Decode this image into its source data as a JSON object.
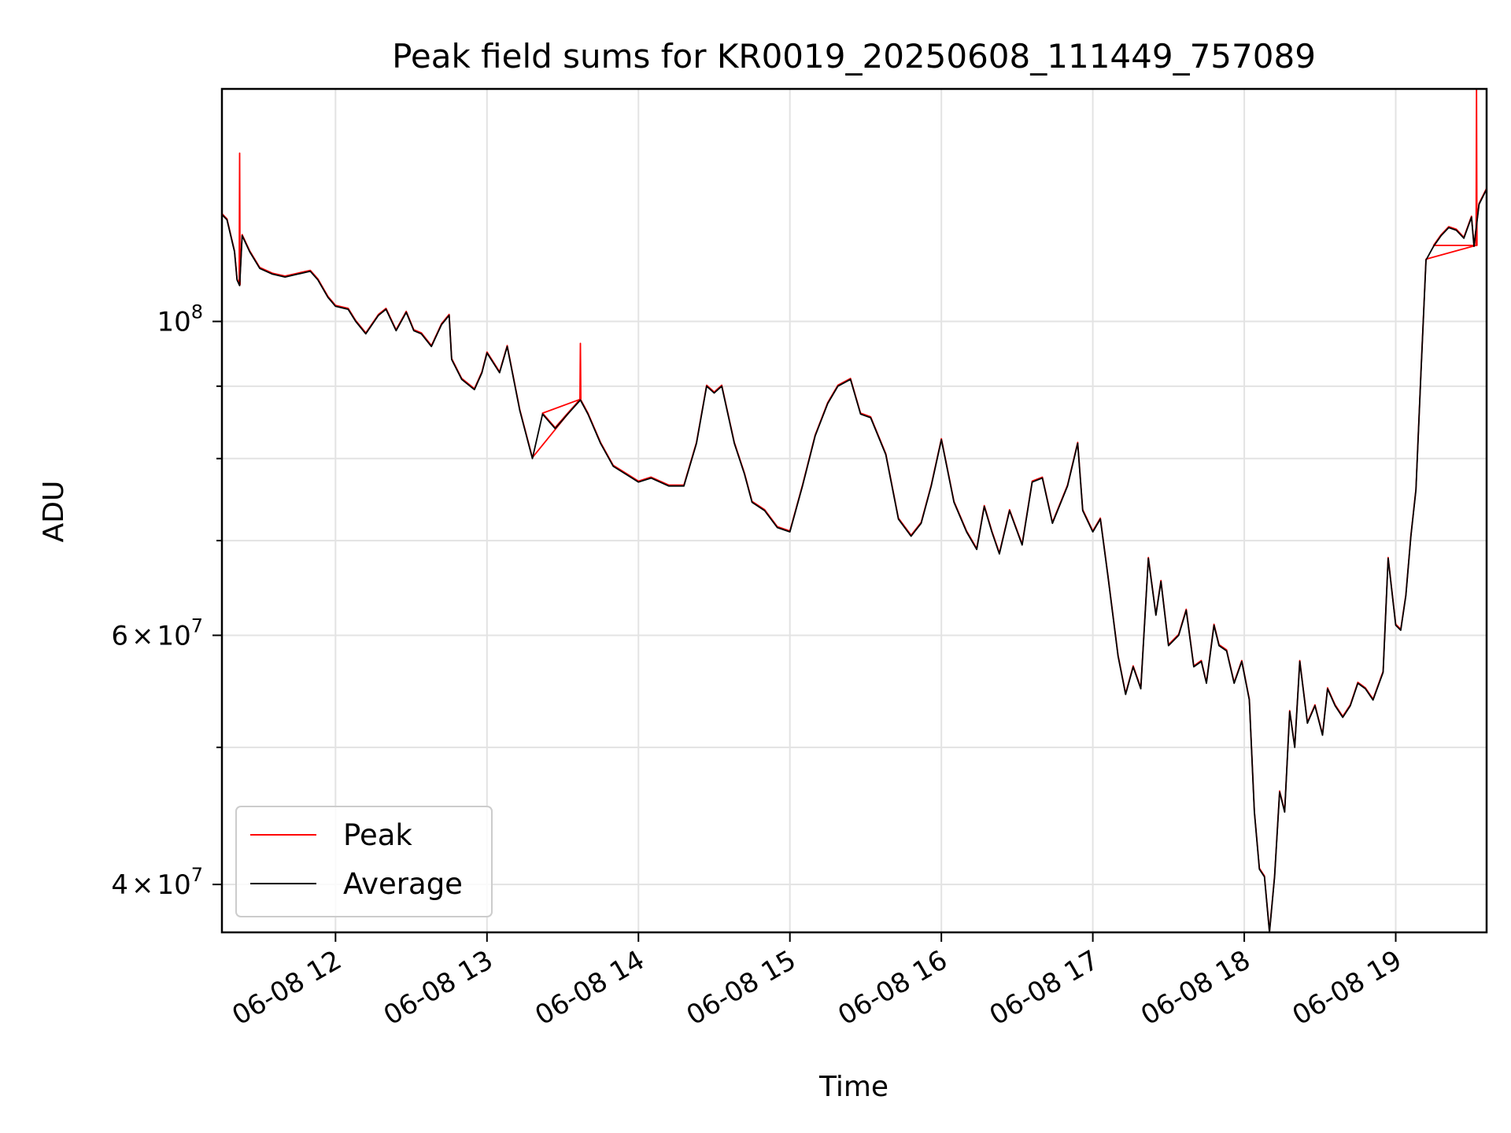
{
  "chart_data": {
    "type": "line",
    "title": "Peak field sums for KR0019_20250608_111449_757089",
    "xlabel": "Time",
    "ylabel": "ADU",
    "y_scale": "log",
    "ylim": [
      37000000,
      146000000
    ],
    "xlim": [
      "2025-06-08 11:15",
      "2025-06-08 19:36"
    ],
    "grid": true,
    "legend_position": "lower-left",
    "x_ticks": [
      {
        "value": "2025-06-08 12:00",
        "label": "06-08 12"
      },
      {
        "value": "2025-06-08 13:00",
        "label": "06-08 13"
      },
      {
        "value": "2025-06-08 14:00",
        "label": "06-08 14"
      },
      {
        "value": "2025-06-08 15:00",
        "label": "06-08 15"
      },
      {
        "value": "2025-06-08 16:00",
        "label": "06-08 16"
      },
      {
        "value": "2025-06-08 17:00",
        "label": "06-08 17"
      },
      {
        "value": "2025-06-08 18:00",
        "label": "06-08 18"
      },
      {
        "value": "2025-06-08 19:00",
        "label": "06-08 19"
      }
    ],
    "y_major_ticks": [
      {
        "value": 40000000,
        "mant": "4",
        "exp": "7"
      },
      {
        "value": 60000000,
        "mant": "6",
        "exp": "7"
      },
      {
        "value": 100000000,
        "mant": "",
        "exp": "8"
      }
    ],
    "y_minor_gridlines": [
      50000000,
      70000000,
      80000000,
      90000000
    ],
    "series": [
      {
        "name": "Peak",
        "color": "#ff0000",
        "spikes": [
          {
            "x": "2025-06-08 11:22",
            "y": 131500000
          },
          {
            "x": "2025-06-08 13:37",
            "y": 96500000
          },
          {
            "x": "2025-06-08 19:32",
            "y": 146000000
          }
        ]
      },
      {
        "name": "Average",
        "color": "#000000",
        "x": [
          "2025-06-08 11:15",
          "2025-06-08 11:17",
          "2025-06-08 11:20",
          "2025-06-08 11:21",
          "2025-06-08 11:22",
          "2025-06-08 11:23",
          "2025-06-08 11:26",
          "2025-06-08 11:30",
          "2025-06-08 11:35",
          "2025-06-08 11:40",
          "2025-06-08 11:45",
          "2025-06-08 11:50",
          "2025-06-08 11:53",
          "2025-06-08 11:57",
          "2025-06-08 12:00",
          "2025-06-08 12:05",
          "2025-06-08 12:08",
          "2025-06-08 12:12",
          "2025-06-08 12:17",
          "2025-06-08 12:20",
          "2025-06-08 12:24",
          "2025-06-08 12:28",
          "2025-06-08 12:31",
          "2025-06-08 12:34",
          "2025-06-08 12:38",
          "2025-06-08 12:42",
          "2025-06-08 12:45",
          "2025-06-08 12:46",
          "2025-06-08 12:50",
          "2025-06-08 12:55",
          "2025-06-08 12:58",
          "2025-06-08 13:00",
          "2025-06-08 13:05",
          "2025-06-08 13:08",
          "2025-06-08 13:13",
          "2025-06-08 13:18",
          "2025-06-08 13:22",
          "2025-06-08 13:27",
          "2025-06-08 13:32",
          "2025-06-08 13:37",
          "2025-06-08 13:40",
          "2025-06-08 13:45",
          "2025-06-08 13:50",
          "2025-06-08 13:55",
          "2025-06-08 14:00",
          "2025-06-08 14:05",
          "2025-06-08 14:12",
          "2025-06-08 14:18",
          "2025-06-08 14:23",
          "2025-06-08 14:27",
          "2025-06-08 14:30",
          "2025-06-08 14:33",
          "2025-06-08 14:38",
          "2025-06-08 14:42",
          "2025-06-08 14:45",
          "2025-06-08 14:50",
          "2025-06-08 14:55",
          "2025-06-08 15:00",
          "2025-06-08 15:05",
          "2025-06-08 15:10",
          "2025-06-08 15:15",
          "2025-06-08 15:19",
          "2025-06-08 15:24",
          "2025-06-08 15:28",
          "2025-06-08 15:32",
          "2025-06-08 15:38",
          "2025-06-08 15:43",
          "2025-06-08 15:48",
          "2025-06-08 15:52",
          "2025-06-08 15:56",
          "2025-06-08 16:00",
          "2025-06-08 16:05",
          "2025-06-08 16:10",
          "2025-06-08 16:14",
          "2025-06-08 16:17",
          "2025-06-08 16:20",
          "2025-06-08 16:23",
          "2025-06-08 16:27",
          "2025-06-08 16:32",
          "2025-06-08 16:36",
          "2025-06-08 16:40",
          "2025-06-08 16:44",
          "2025-06-08 16:50",
          "2025-06-08 16:54",
          "2025-06-08 16:56",
          "2025-06-08 17:00",
          "2025-06-08 17:03",
          "2025-06-08 17:06",
          "2025-06-08 17:10",
          "2025-06-08 17:13",
          "2025-06-08 17:16",
          "2025-06-08 17:19",
          "2025-06-08 17:22",
          "2025-06-08 17:25",
          "2025-06-08 17:27",
          "2025-06-08 17:30",
          "2025-06-08 17:34",
          "2025-06-08 17:37",
          "2025-06-08 17:40",
          "2025-06-08 17:43",
          "2025-06-08 17:45",
          "2025-06-08 17:48",
          "2025-06-08 17:50",
          "2025-06-08 17:53",
          "2025-06-08 17:56",
          "2025-06-08 17:59",
          "2025-06-08 18:02",
          "2025-06-08 18:04",
          "2025-06-08 18:06",
          "2025-06-08 18:08",
          "2025-06-08 18:10",
          "2025-06-08 18:12",
          "2025-06-08 18:14",
          "2025-06-08 18:16",
          "2025-06-08 18:18",
          "2025-06-08 18:20",
          "2025-06-08 18:22",
          "2025-06-08 18:25",
          "2025-06-08 18:28",
          "2025-06-08 18:31",
          "2025-06-08 18:33",
          "2025-06-08 18:36",
          "2025-06-08 18:39",
          "2025-06-08 18:42",
          "2025-06-08 18:45",
          "2025-06-08 18:48",
          "2025-06-08 18:51",
          "2025-06-08 18:55",
          "2025-06-08 18:57",
          "2025-06-08 19:00",
          "2025-06-08 19:02",
          "2025-06-08 19:04",
          "2025-06-08 19:06",
          "2025-06-08 19:08",
          "2025-06-08 19:10",
          "2025-06-08 19:12",
          "2025-06-08 19:15",
          "2025-06-08 19:18",
          "2025-06-08 19:21",
          "2025-06-08 19:24",
          "2025-06-08 19:27",
          "2025-06-08 19:30",
          "2025-06-08 19:31",
          "2025-06-08 19:33",
          "2025-06-08 19:36"
        ],
        "values": [
          119000000,
          118000000,
          112000000,
          107000000,
          106000000,
          115000000,
          112000000,
          109000000,
          108000000,
          107500000,
          108000000,
          108500000,
          107000000,
          104000000,
          102500000,
          102000000,
          100000000,
          98000000,
          101000000,
          102000000,
          98500000,
          101500000,
          98500000,
          98000000,
          96000000,
          99500000,
          101000000,
          94000000,
          91000000,
          89500000,
          92000000,
          95000000,
          92000000,
          96000000,
          86500000,
          80000000,
          86000000,
          84000000,
          86000000,
          88000000,
          86000000,
          82000000,
          79000000,
          78000000,
          77000000,
          77500000,
          76500000,
          76500000,
          82000000,
          90000000,
          89000000,
          90000000,
          82000000,
          78000000,
          74500000,
          73500000,
          71500000,
          71000000,
          76500000,
          83000000,
          87500000,
          90000000,
          91000000,
          86000000,
          85500000,
          80500000,
          72500000,
          70500000,
          72000000,
          76500000,
          82500000,
          74500000,
          71000000,
          69000000,
          74000000,
          71000000,
          68500000,
          73500000,
          69500000,
          77000000,
          77500000,
          72000000,
          76500000,
          82000000,
          73500000,
          71000000,
          72500000,
          66000000,
          58000000,
          54500000,
          57000000,
          55000000,
          68000000,
          62000000,
          65500000,
          59000000,
          60000000,
          62500000,
          57000000,
          57500000,
          55500000,
          61000000,
          59000000,
          58500000,
          55500000,
          57500000,
          54000000,
          45000000,
          41000000,
          40500000,
          37000000,
          40500000,
          46500000,
          45000000,
          53000000,
          50000000,
          57500000,
          52000000,
          53500000,
          51000000,
          55000000,
          53500000,
          52500000,
          53500000,
          55500000,
          55000000,
          54000000,
          56500000,
          68000000,
          61000000,
          60500000,
          64000000,
          70500000,
          76000000,
          92000000,
          110500000,
          113000000,
          115000000,
          116500000,
          116000000,
          114500000,
          118500000,
          113000000,
          121000000,
          124000000
        ]
      }
    ]
  }
}
